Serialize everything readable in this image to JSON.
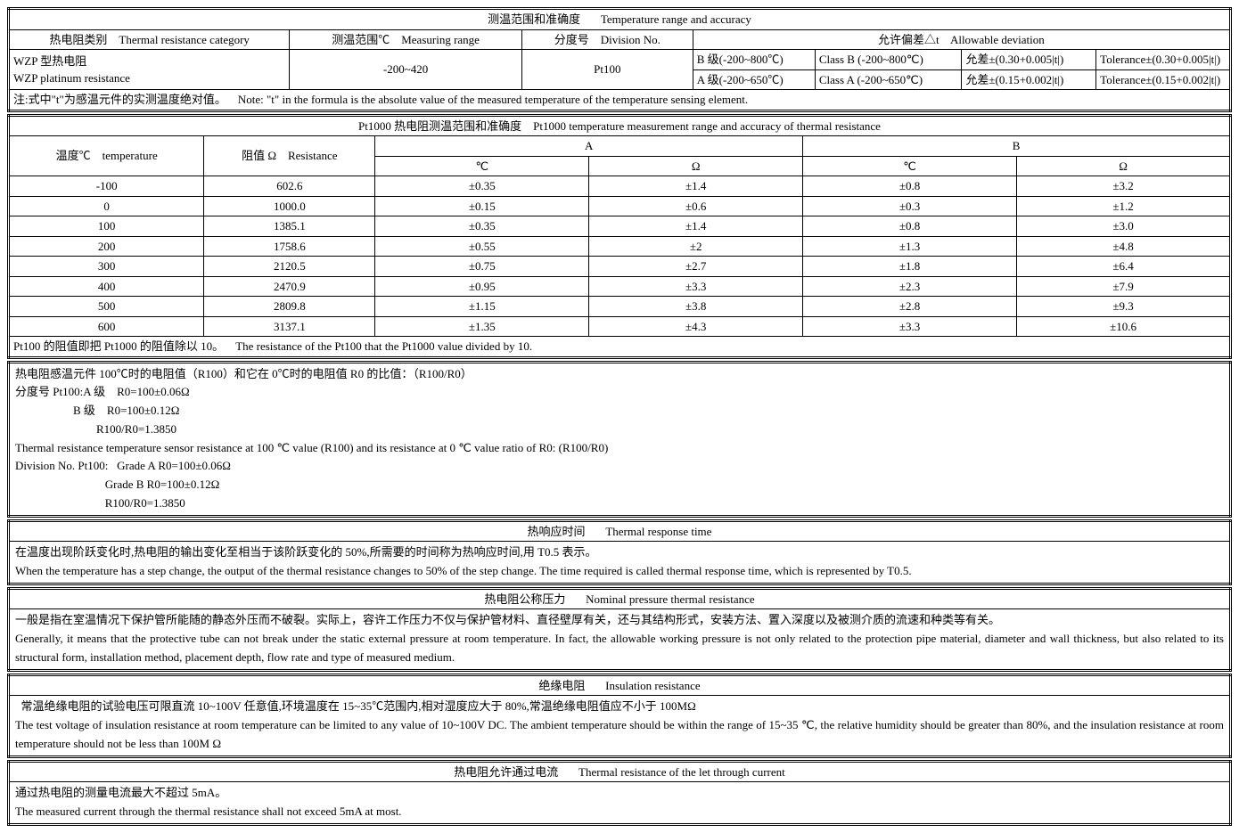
{
  "t1": {
    "title_cn": "测温范围和准确度",
    "title_en": "Temperature range and accuracy",
    "h_category_cn": "热电阻类别",
    "h_category_en": "Thermal resistance category",
    "h_range_cn": "测温范围℃",
    "h_range_en": "Measuring range",
    "h_div_cn": "分度号",
    "h_div_en": "Division No.",
    "h_dev_cn": "允许偏差△t",
    "h_dev_en": "Allowable deviation",
    "cat_cn": "WZP 型热电阻",
    "cat_en": "WZP platinum resistance",
    "range": "-200~420",
    "div": "Pt100",
    "b_cn": "B 级(-200~800℃)",
    "b_en": "Class B (-200~800℃)",
    "b_tol_cn": "允差±(0.30+0.005|t|)",
    "b_tol_en": "Tolerance±(0.30+0.005|t|)",
    "a_cn": "A 级(-200~650℃)",
    "a_en": "Class A (-200~650℃)",
    "a_tol_cn": "允差±(0.15+0.002|t|)",
    "a_tol_en": "Tolerance±(0.15+0.002|t|)",
    "note_cn": "注:式中\"t\"为感温元件的实测温度绝对值。",
    "note_en": "Note: \"t\" in the formula is the absolute value of the measured temperature of the temperature sensing element."
  },
  "t2": {
    "title_cn": "Pt1000 热电阻测温范围和准确度",
    "title_en": "Pt1000 temperature measurement range and accuracy of thermal resistance",
    "h_temp_cn": "温度℃",
    "h_temp_en": "temperature",
    "h_res_cn": "阻值 Ω",
    "h_res_en": "Resistance",
    "h_a": "A",
    "h_b": "B",
    "h_degc": "℃",
    "h_ohm": "Ω",
    "rows": [
      {
        "t": "-100",
        "r": "602.6",
        "ac": "±0.35",
        "ao": "±1.4",
        "bc": "±0.8",
        "bo": "±3.2"
      },
      {
        "t": "0",
        "r": "1000.0",
        "ac": "±0.15",
        "ao": "±0.6",
        "bc": "±0.3",
        "bo": "±1.2"
      },
      {
        "t": "100",
        "r": "1385.1",
        "ac": "±0.35",
        "ao": "±1.4",
        "bc": "±0.8",
        "bo": "±3.0"
      },
      {
        "t": "200",
        "r": "1758.6",
        "ac": "±0.55",
        "ao": "±2",
        "bc": "±1.3",
        "bo": "±4.8"
      },
      {
        "t": "300",
        "r": "2120.5",
        "ac": "±0.75",
        "ao": "±2.7",
        "bc": "±1.8",
        "bo": "±6.4"
      },
      {
        "t": "400",
        "r": "2470.9",
        "ac": "±0.95",
        "ao": "±3.3",
        "bc": "±2.3",
        "bo": "±7.9"
      },
      {
        "t": "500",
        "r": "2809.8",
        "ac": "±1.15",
        "ao": "±3.8",
        "bc": "±2.8",
        "bo": "±9.3"
      },
      {
        "t": "600",
        "r": "3137.1",
        "ac": "±1.35",
        "ao": "±4.3",
        "bc": "±3.3",
        "bo": "±10.6"
      }
    ],
    "foot_cn": "Pt100 的阻值即把 Pt1000 的阻值除以 10。",
    "foot_en": "The resistance of the Pt100 that the Pt1000 value divided by 10."
  },
  "ratio": {
    "l1": "热电阻感温元件 100℃时的电阻值（R100）和它在 0℃时的电阻值 R0 的比值：（R100/R0）",
    "l2": "分度号 Pt100:A 级    R0=100±0.06Ω",
    "l3": "                    B 级    R0=100±0.12Ω",
    "l4": "                            R100/R0=1.3850",
    "l5": "Thermal resistance temperature sensor resistance at 100 ℃ value (R100) and its resistance at 0 ℃ value ratio of R0: (R100/R0)",
    "l6": "Division No. Pt100:   Grade A R0=100±0.06Ω",
    "l7": "                               Grade B R0=100±0.12Ω",
    "l8": "                               R100/R0=1.3850"
  },
  "s_thermal_resp": {
    "title_cn": "热响应时间",
    "title_en": "Thermal response time",
    "body_cn": "在温度出现阶跃变化时,热电阻的输出变化至相当于该阶跃变化的 50%,所需要的时间称为热响应时间,用 T0.5 表示。",
    "body_en": "When the temperature has a step change, the output of the thermal resistance changes to 50% of the step change. The time required is called thermal response time, which is represented by T0.5."
  },
  "s_nominal": {
    "title_cn": "热电阻公称压力",
    "title_en": "Nominal pressure thermal resistance",
    "body_cn": "一般是指在室温情况下保护管所能随的静态外压而不破裂。实际上，容许工作压力不仅与保护管材料、直径壁厚有关，还与其结构形式，安装方法、置入深度以及被测介质的流速和种类等有关。",
    "body_en": "Generally, it means that the protective tube can not break under the static external pressure at room temperature. In fact, the allowable working pressure is not only related to the protection pipe material, diameter and wall thickness, but also related to its structural form, installation method, placement depth, flow rate and type of measured medium."
  },
  "s_insul": {
    "title_cn": "绝缘电阻",
    "title_en": "Insulation resistance",
    "body_cn": "  常温绝缘电阻的试验电压可限直流 10~100V 任意值,环境温度在 15~35℃范围内,相对湿度应大于 80%,常温绝缘电阻值应不小于 100MΩ",
    "body_en": "The test voltage of insulation resistance at room temperature can be limited to any value of 10~100V DC. The ambient temperature should be within the range of 15~35 ℃, the relative humidity should be greater than 80%, and the insulation resistance at room temperature should not be less than 100M Ω"
  },
  "s_current": {
    "title_cn": "热电阻允许通过电流",
    "title_en": "Thermal resistance of the let through current",
    "body_cn": "通过热电阻的测量电流最大不超过 5mA。",
    "body_en": "The measured current through the thermal resistance shall not exceed 5mA at most."
  }
}
